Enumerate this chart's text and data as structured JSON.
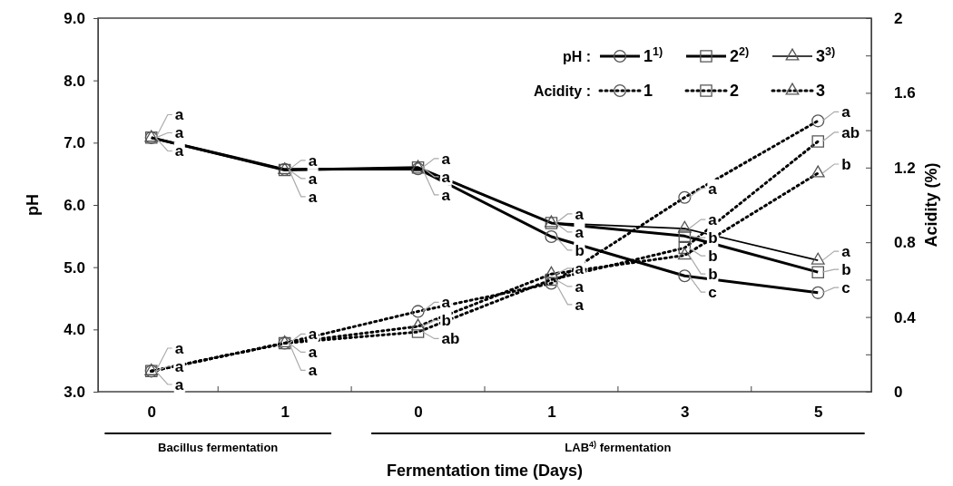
{
  "chart_data": {
    "type": "line",
    "xlabel": "Fermentation time (Days)",
    "ylabel": "pH",
    "y2label": "Acidity (%)",
    "categories": [
      "0",
      "1",
      "0",
      "1",
      "3",
      "5"
    ],
    "ylim": [
      3,
      9
    ],
    "yticks": [
      {
        "value": 3,
        "label": "3.0"
      },
      {
        "value": 4,
        "label": "4.0"
      },
      {
        "value": 5,
        "label": "5.0"
      },
      {
        "value": 6,
        "label": "6.0"
      },
      {
        "value": 7,
        "label": "7.0"
      },
      {
        "value": 8,
        "label": "8.0"
      },
      {
        "value": 9,
        "label": "9.0"
      }
    ],
    "y2lim": [
      0,
      2
    ],
    "y2ticks": [
      0,
      {
        "value": 0.2,
        "label": null
      },
      0.4,
      {
        "value": 0.6,
        "label": null
      },
      0.8,
      {
        "value": 1,
        "label": null
      },
      1.2,
      {
        "value": 1.4,
        "label": null
      },
      1.6,
      {
        "value": 1.8,
        "label": null
      },
      2
    ],
    "grid": false,
    "legend": "top right",
    "annotations": [
      "pH :",
      "Acidity :",
      "Bacillus fermentation",
      "LAB$^{4)}$ fermentation"
    ],
    "series": [
      {
        "name": "1$^{1)}$",
        "color": "#000000",
        "axis": "y",
        "marker": "circle",
        "line_style": "solid",
        "values": [
          7.08,
          6.57,
          6.58,
          5.49,
          4.86,
          4.59
        ],
        "value_labels": [
          "a",
          "a",
          "a",
          "b",
          "c",
          "c"
        ]
      },
      {
        "name": "2$^{2)}$",
        "color": "#000000",
        "axis": "y",
        "marker": "square",
        "line_style": "solid",
        "values": [
          7.08,
          6.56,
          6.6,
          5.71,
          5.5,
          4.92
        ],
        "value_labels": [
          "a",
          "a",
          "a",
          "a",
          "b",
          "b"
        ]
      },
      {
        "name": "3$^{3)}$",
        "color": "#000000",
        "axis": "y",
        "marker": "triangle",
        "line_style": "solid",
        "values": [
          7.08,
          6.56,
          6.6,
          5.71,
          5.62,
          5.11
        ],
        "value_labels": [
          "a",
          "a",
          "a",
          "a",
          "a",
          "a"
        ]
      },
      {
        "name": "1",
        "color": "#000000",
        "axis": "y2",
        "marker": "circle",
        "line_style": "dotted",
        "values": [
          0.11,
          0.26,
          0.43,
          0.58,
          1.04,
          1.45
        ],
        "value_labels": [
          "a",
          "a",
          "a",
          "a",
          "a",
          "a"
        ]
      },
      {
        "name": "2",
        "color": "#000000",
        "axis": "y2",
        "marker": "square",
        "line_style": "dotted",
        "values": [
          0.11,
          0.26,
          0.32,
          0.6,
          0.77,
          1.34
        ],
        "value_labels": [
          "a",
          "a",
          "ab",
          "a",
          "b",
          "ab"
        ]
      },
      {
        "name": "3",
        "color": "#000000",
        "axis": "y2",
        "marker": "triangle",
        "line_style": "dotted",
        "values": [
          0.11,
          0.26,
          0.35,
          0.63,
          0.73,
          1.17
        ],
        "value_labels": [
          "a",
          "a",
          "b",
          "a",
          "b",
          "b"
        ]
      }
    ]
  }
}
